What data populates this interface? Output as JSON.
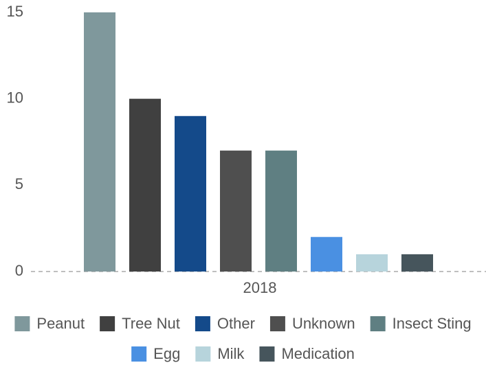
{
  "chart_data": {
    "type": "bar",
    "categories": [
      "2018"
    ],
    "series": [
      {
        "name": "Peanut",
        "color": "#7f989c",
        "values": [
          15
        ]
      },
      {
        "name": "Tree Nut",
        "color": "#404040",
        "values": [
          10
        ]
      },
      {
        "name": "Other",
        "color": "#144a8a",
        "values": [
          9
        ]
      },
      {
        "name": "Unknown",
        "color": "#4f4f4f",
        "values": [
          7
        ]
      },
      {
        "name": "Insect Sting",
        "color": "#5f7f82",
        "values": [
          7
        ]
      },
      {
        "name": "Egg",
        "color": "#4a90e2",
        "values": [
          2
        ]
      },
      {
        "name": "Milk",
        "color": "#b7d4dc",
        "values": [
          1
        ]
      },
      {
        "name": "Medication",
        "color": "#46555c",
        "values": [
          1
        ]
      }
    ],
    "ylim": [
      0,
      15
    ],
    "yticks": [
      0,
      5,
      10,
      15
    ],
    "grid": false,
    "legend": "bottom"
  }
}
